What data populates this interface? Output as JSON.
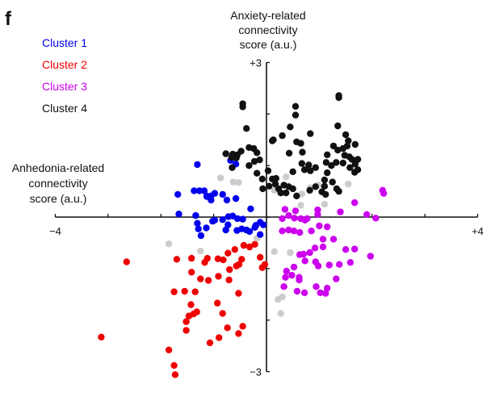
{
  "panel_label": "f",
  "chart_data": {
    "type": "scatter",
    "title": "",
    "xlabel": "Anhedonia-related connectivity score (a.u.)",
    "xlabel_lines": [
      "Anhedonia-related",
      "connectivity",
      "score (a.u.)"
    ],
    "ylabel": "Anxiety-related connectivity score (a.u.)",
    "ylabel_lines": [
      "Anxiety-related",
      "connectivity",
      "score (a.u.)"
    ],
    "xlim": [
      -4,
      4
    ],
    "ylim": [
      -3,
      3
    ],
    "x_tick_labels": [
      {
        "value": -4,
        "text": "−4"
      },
      {
        "value": 4,
        "text": "+4"
      }
    ],
    "y_tick_labels": [
      {
        "value": 3,
        "text": "+3"
      },
      {
        "value": -3,
        "text": "−3"
      }
    ],
    "grid": false,
    "legend_position": "top-left",
    "series": [
      {
        "name": "Cluster 1",
        "color": "#0000ee",
        "points": [
          [
            -0.68,
            1.1
          ],
          [
            -0.58,
            1.03
          ],
          [
            -1.31,
            1.02
          ],
          [
            -1.68,
            0.44
          ],
          [
            -1.37,
            0.51
          ],
          [
            -1.27,
            0.51
          ],
          [
            -1.18,
            0.51
          ],
          [
            -1.13,
            0.41
          ],
          [
            -1.05,
            0.41
          ],
          [
            -0.98,
            0.46
          ],
          [
            -0.83,
            0.44
          ],
          [
            -0.75,
            0.33
          ],
          [
            -0.58,
            0.36
          ],
          [
            -1.13,
            0.4
          ],
          [
            -1.05,
            0.33
          ],
          [
            -1.66,
            0.06
          ],
          [
            -1.34,
            0.03
          ],
          [
            -1.31,
            -0.12
          ],
          [
            -1.29,
            -0.23
          ],
          [
            -1.24,
            -0.36
          ],
          [
            -1.02,
            -0.08
          ],
          [
            -0.98,
            -0.06
          ],
          [
            -0.83,
            -0.05
          ],
          [
            -0.73,
            -0.15
          ],
          [
            -0.55,
            -0.03
          ],
          [
            -0.45,
            -0.04
          ],
          [
            -0.77,
            -0.25
          ],
          [
            -0.56,
            -0.26
          ],
          [
            -0.47,
            -0.23
          ],
          [
            -0.38,
            -0.25
          ],
          [
            -0.32,
            -0.28
          ],
          [
            -0.22,
            -0.2
          ],
          [
            -0.12,
            -0.1
          ],
          [
            -0.06,
            -0.15
          ],
          [
            -0.3,
            0.16
          ],
          [
            -0.2,
            -0.16
          ],
          [
            -0.72,
            0.01
          ],
          [
            -0.64,
            0.02
          ],
          [
            -1.14,
            -0.21
          ],
          [
            -0.12,
            -0.34
          ]
        ]
      },
      {
        "name": "Cluster 2",
        "color": "#ee0000",
        "points": [
          [
            -2.65,
            -0.87
          ],
          [
            -1.7,
            -0.82
          ],
          [
            -1.42,
            -0.8
          ],
          [
            -1.12,
            -0.8
          ],
          [
            -0.92,
            -0.81
          ],
          [
            -0.73,
            -0.7
          ],
          [
            -0.6,
            -0.63
          ],
          [
            -0.43,
            -0.55
          ],
          [
            -0.32,
            -0.58
          ],
          [
            -0.22,
            -0.53
          ],
          [
            -0.12,
            -0.78
          ],
          [
            -0.03,
            -0.92
          ],
          [
            -0.08,
            -0.98
          ],
          [
            -0.47,
            -0.82
          ],
          [
            -0.57,
            -0.95
          ],
          [
            -0.7,
            -1.02
          ],
          [
            -1.17,
            -0.88
          ],
          [
            -1.25,
            -1.2
          ],
          [
            -1.42,
            -1.07
          ],
          [
            -1.35,
            -1.45
          ],
          [
            -1.43,
            -1.7
          ],
          [
            -1.55,
            -1.44
          ],
          [
            -1.75,
            -1.45
          ],
          [
            -1.1,
            -1.23
          ],
          [
            -0.91,
            -1.15
          ],
          [
            -0.71,
            -1.22
          ],
          [
            -0.53,
            -1.48
          ],
          [
            -0.93,
            -1.67
          ],
          [
            -1.32,
            -1.84
          ],
          [
            -1.38,
            -1.88
          ],
          [
            -1.47,
            -1.92
          ],
          [
            -1.52,
            -2.03
          ],
          [
            -1.52,
            -2.2
          ],
          [
            -0.83,
            -1.87
          ],
          [
            -0.74,
            -2.15
          ],
          [
            -0.45,
            -2.12
          ],
          [
            -0.53,
            -2.26
          ],
          [
            -0.9,
            -2.34
          ],
          [
            -1.07,
            -2.44
          ],
          [
            -1.85,
            -2.58
          ],
          [
            -3.13,
            -2.33
          ],
          [
            -1.75,
            -2.88
          ],
          [
            -1.73,
            -3.06
          ],
          [
            -0.82,
            -0.83
          ],
          [
            -0.52,
            -0.92
          ]
        ]
      },
      {
        "name": "Cluster 3",
        "color": "#cc00ee",
        "points": [
          [
            2.2,
            0.52
          ],
          [
            2.22,
            0.46
          ],
          [
            1.67,
            0.28
          ],
          [
            1.9,
            0.05
          ],
          [
            2.07,
            -0.02
          ],
          [
            1.4,
            0.1
          ],
          [
            0.97,
            0.14
          ],
          [
            0.97,
            0.05
          ],
          [
            0.77,
            -0.03
          ],
          [
            0.73,
            -0.06
          ],
          [
            0.65,
            -0.03
          ],
          [
            0.53,
            -0.02
          ],
          [
            0.3,
            -0.03
          ],
          [
            0.42,
            0.03
          ],
          [
            0.55,
            0.12
          ],
          [
            0.35,
            0.15
          ],
          [
            0.3,
            -0.27
          ],
          [
            0.42,
            -0.25
          ],
          [
            0.52,
            -0.27
          ],
          [
            0.63,
            -0.3
          ],
          [
            0.85,
            -0.27
          ],
          [
            1.0,
            -0.17
          ],
          [
            1.15,
            -0.19
          ],
          [
            1.27,
            -0.43
          ],
          [
            1.07,
            -0.43
          ],
          [
            1.07,
            -0.58
          ],
          [
            0.92,
            -0.6
          ],
          [
            0.82,
            -0.69
          ],
          [
            0.7,
            -0.72
          ],
          [
            0.63,
            -0.73
          ],
          [
            0.73,
            -0.85
          ],
          [
            0.93,
            -0.87
          ],
          [
            0.98,
            -0.95
          ],
          [
            1.19,
            -0.93
          ],
          [
            1.38,
            -0.92
          ],
          [
            1.5,
            -0.63
          ],
          [
            1.59,
            -0.88
          ],
          [
            1.67,
            -0.62
          ],
          [
            1.97,
            -0.76
          ],
          [
            0.52,
            -0.97
          ],
          [
            0.62,
            -1.17
          ],
          [
            0.48,
            -1.13
          ],
          [
            0.38,
            -1.05
          ],
          [
            0.36,
            -1.17
          ],
          [
            0.33,
            -1.35
          ],
          [
            0.58,
            -1.44
          ],
          [
            0.62,
            -1.22
          ],
          [
            0.94,
            -1.35
          ],
          [
            1.02,
            -1.47
          ],
          [
            1.12,
            -1.48
          ],
          [
            1.15,
            -1.38
          ],
          [
            1.32,
            -1.2
          ],
          [
            0.72,
            -1.47
          ]
        ]
      },
      {
        "name": "Cluster 4",
        "color": "#111111",
        "points": [
          [
            -0.45,
            2.14
          ],
          [
            -0.45,
            2.2
          ],
          [
            -0.38,
            1.72
          ],
          [
            -0.48,
            1.28
          ],
          [
            -0.55,
            1.21
          ],
          [
            -0.57,
            1.15
          ],
          [
            -0.64,
            1.22
          ],
          [
            -0.66,
            1.16
          ],
          [
            -0.77,
            1.23
          ],
          [
            -0.65,
            0.96
          ],
          [
            -0.33,
            1.35
          ],
          [
            -0.24,
            1.33
          ],
          [
            -0.18,
            1.25
          ],
          [
            -0.13,
            1.11
          ],
          [
            -0.23,
            1.08
          ],
          [
            -0.33,
            1.0
          ],
          [
            -0.18,
            0.85
          ],
          [
            -0.08,
            0.74
          ],
          [
            0.03,
            0.9
          ],
          [
            0.11,
            0.74
          ],
          [
            0.18,
            0.75
          ],
          [
            -0.07,
            0.55
          ],
          [
            0.05,
            0.6
          ],
          [
            0.17,
            0.64
          ],
          [
            0.23,
            0.55
          ],
          [
            0.33,
            0.62
          ],
          [
            0.42,
            0.59
          ],
          [
            0.37,
            0.47
          ],
          [
            0.27,
            0.47
          ],
          [
            0.5,
            0.55
          ],
          [
            0.57,
            0.41
          ],
          [
            0.5,
            0.88
          ],
          [
            0.43,
            1.24
          ],
          [
            0.57,
            1.46
          ],
          [
            0.45,
            1.75
          ],
          [
            0.3,
            1.58
          ],
          [
            0.11,
            1.48
          ],
          [
            0.13,
            1.5
          ],
          [
            0.55,
            2.15
          ],
          [
            0.55,
            1.98
          ],
          [
            0.65,
            1.43
          ],
          [
            0.68,
            1.26
          ],
          [
            0.67,
            1.04
          ],
          [
            0.72,
            0.92
          ],
          [
            0.83,
            1.62
          ],
          [
            0.8,
            1.01
          ],
          [
            0.83,
            0.9
          ],
          [
            0.93,
            0.96
          ],
          [
            0.93,
            0.59
          ],
          [
            0.82,
            0.52
          ],
          [
            1.05,
            0.49
          ],
          [
            1.1,
            0.6
          ],
          [
            1.12,
            0.44
          ],
          [
            1.15,
            1.21
          ],
          [
            1.13,
            1.06
          ],
          [
            1.15,
            0.86
          ],
          [
            1.23,
            1.0
          ],
          [
            1.25,
            0.68
          ],
          [
            1.33,
            0.55
          ],
          [
            1.37,
            0.5
          ],
          [
            1.27,
            1.38
          ],
          [
            1.35,
            1.3
          ],
          [
            1.45,
            1.33
          ],
          [
            1.53,
            1.38
          ],
          [
            1.48,
            1.2
          ],
          [
            1.45,
            1.05
          ],
          [
            1.57,
            1.17
          ],
          [
            1.62,
            1.12
          ],
          [
            1.58,
            0.96
          ],
          [
            1.67,
            0.87
          ],
          [
            1.73,
            0.92
          ],
          [
            1.37,
            2.36
          ],
          [
            1.37,
            2.32
          ],
          [
            1.35,
            1.77
          ],
          [
            1.55,
            1.48
          ],
          [
            1.68,
            1.41
          ],
          [
            1.73,
            1.12
          ],
          [
            1.5,
            1.6
          ],
          [
            1.68,
            1.03
          ],
          [
            1.32,
            1.06
          ],
          [
            1.1,
            0.72
          ]
        ]
      },
      {
        "name": "",
        "color": "#cccccc",
        "points": [
          [
            -1.25,
            -0.66
          ],
          [
            -1.85,
            -0.52
          ],
          [
            -0.87,
            0.76
          ],
          [
            -0.53,
            0.67
          ],
          [
            -0.63,
            0.68
          ],
          [
            -0.18,
            -0.41
          ],
          [
            0.15,
            -0.67
          ],
          [
            0.22,
            -1.6
          ],
          [
            0.3,
            -1.55
          ],
          [
            0.27,
            -1.87
          ],
          [
            0.45,
            -0.69
          ],
          [
            0.15,
            0.52
          ],
          [
            0.65,
            0.23
          ],
          [
            0.67,
            0.45
          ],
          [
            1.1,
            0.25
          ],
          [
            0.83,
            0.57
          ],
          [
            0.98,
            0.62
          ],
          [
            1.55,
            0.64
          ],
          [
            0.37,
            0.78
          ]
        ]
      }
    ]
  }
}
